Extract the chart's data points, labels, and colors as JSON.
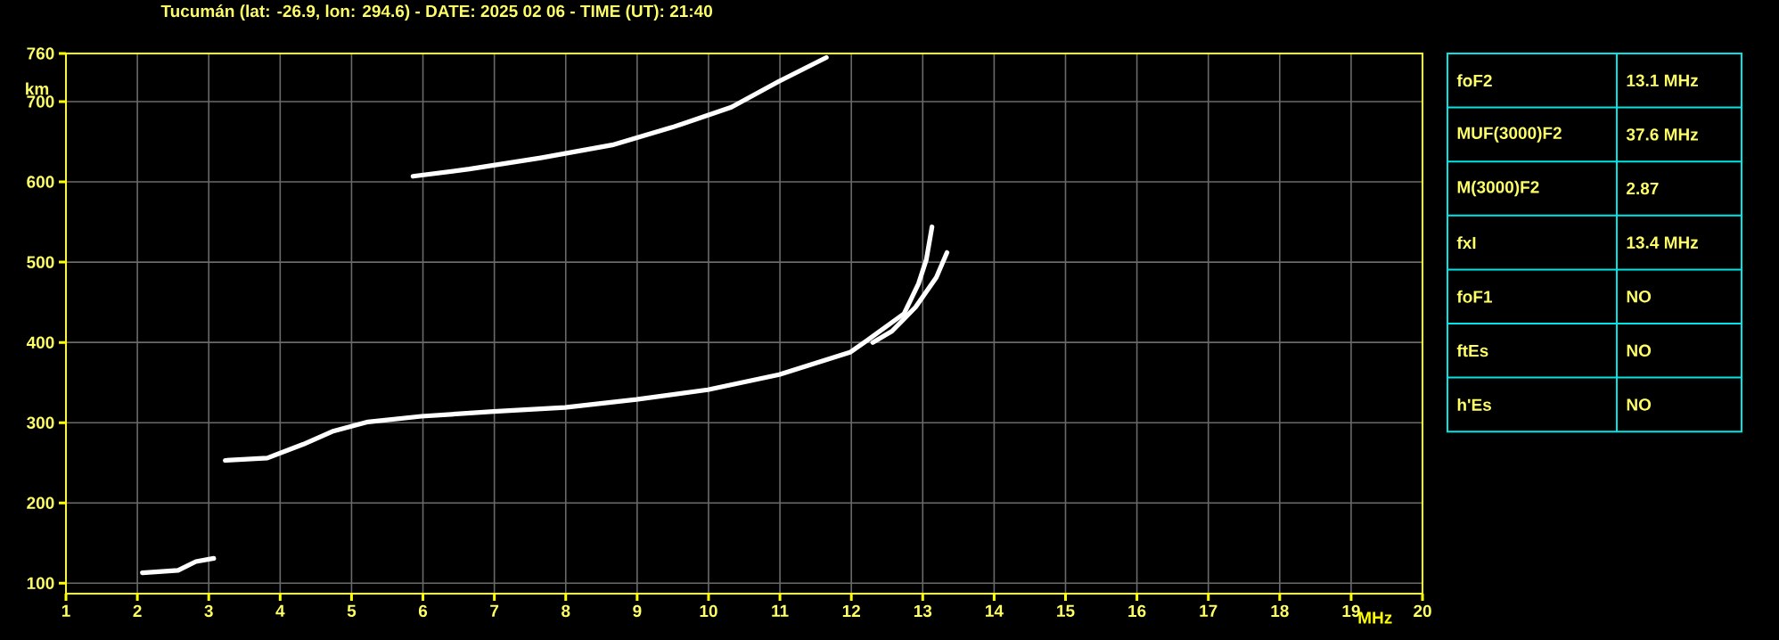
{
  "chart_data": [
    {
      "type": "line",
      "title": "Tucumán (lat: -26.9, lon: 294.6) - DATE: 2025 02 06 - TIME (UT): 21:40",
      "xlabel": "MHz",
      "ylabel": "km",
      "xlim": [
        1,
        20
      ],
      "ylim": [
        87,
        760
      ],
      "xticks": [
        1,
        2,
        3,
        4,
        5,
        6,
        7,
        8,
        9,
        10,
        11,
        12,
        13,
        14,
        15,
        16,
        17,
        18,
        19,
        20
      ],
      "yticks": [
        100,
        200,
        300,
        400,
        500,
        600,
        700,
        760
      ],
      "grid": true,
      "marker": "none",
      "line_style": "solid",
      "series": [
        {
          "color": "#ffffff",
          "x": [
            3.23,
            3.82,
            4.32,
            4.73,
            5.23,
            5.98,
            6.99,
            7.99,
            8.99,
            9.99,
            10.99,
            11.99,
            12.23,
            12.74,
            12.94,
            13.05,
            13.13
          ],
          "values": [
            253,
            256,
            273,
            289,
            301,
            308,
            314,
            319,
            329,
            341,
            360,
            388,
            403,
            436,
            473,
            503,
            544
          ]
        },
        {
          "color": "#ffffff",
          "x": [
            12.3,
            12.57,
            12.9,
            13.19,
            13.34
          ],
          "values": [
            400,
            414,
            444,
            481,
            512
          ]
        },
        {
          "color": "#ffffff",
          "x": [
            5.86,
            6.65,
            7.65,
            8.65,
            9.49,
            10.32,
            10.98,
            11.65
          ],
          "values": [
            607,
            616,
            630,
            646,
            668,
            693,
            725,
            755
          ]
        },
        {
          "color": "#ffffff",
          "x": [
            2.07,
            2.57,
            2.82,
            3.07
          ],
          "values": [
            113,
            116,
            127,
            131
          ]
        }
      ]
    },
    {
      "type": "other",
      "annotations": [
        "foF2",
        "13.1 MHz",
        "MUF(3000)F2",
        "37.6 MHz",
        "M(3000)F2",
        "2.87",
        "fxI",
        "13.4 MHz",
        "foF1",
        "NO",
        "ftEs",
        "NO",
        "h'Es",
        "NO"
      ]
    }
  ]
}
